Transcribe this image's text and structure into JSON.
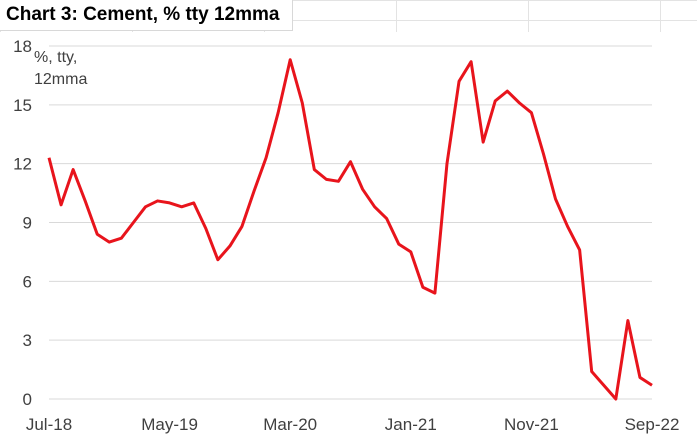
{
  "chart_data": {
    "type": "line",
    "title": "Chart 3: Cement, % tty 12mma",
    "ylabel": "%, tty, 12mma",
    "xlabel": "",
    "ylim": [
      0,
      18
    ],
    "yticks": [
      0,
      3,
      6,
      9,
      12,
      15,
      18
    ],
    "x_tick_labels": [
      "Jul-18",
      "May-19",
      "Mar-20",
      "Jan-21",
      "Nov-21",
      "Sep-22"
    ],
    "grid": true,
    "legend": "none",
    "x": [
      "Jul-18",
      "Aug-18",
      "Sep-18",
      "Oct-18",
      "Nov-18",
      "Dec-18",
      "Jan-19",
      "Feb-19",
      "Mar-19",
      "Apr-19",
      "May-19",
      "Jun-19",
      "Jul-19",
      "Aug-19",
      "Sep-19",
      "Oct-19",
      "Nov-19",
      "Dec-19",
      "Jan-20",
      "Feb-20",
      "Mar-20",
      "Apr-20",
      "May-20",
      "Jun-20",
      "Jul-20",
      "Aug-20",
      "Sep-20",
      "Oct-20",
      "Nov-20",
      "Dec-20",
      "Jan-21",
      "Feb-21",
      "Mar-21",
      "Apr-21",
      "May-21",
      "Jun-21",
      "Jul-21",
      "Aug-21",
      "Sep-21",
      "Oct-21",
      "Nov-21",
      "Dec-21",
      "Jan-22",
      "Feb-22",
      "Mar-22",
      "Apr-22",
      "May-22",
      "Jun-22",
      "Jul-22",
      "Aug-22",
      "Sep-22"
    ],
    "series": [
      {
        "name": "",
        "color": "#e8141c",
        "values": [
          12.3,
          9.9,
          11.7,
          10.1,
          8.4,
          8.0,
          8.2,
          9.0,
          9.8,
          10.1,
          10.0,
          9.8,
          10.0,
          8.7,
          7.1,
          7.8,
          8.8,
          10.6,
          12.3,
          14.6,
          17.3,
          15.1,
          11.7,
          11.2,
          11.1,
          12.1,
          10.7,
          9.8,
          9.2,
          7.9,
          7.5,
          5.7,
          5.4,
          12.0,
          16.2,
          17.2,
          13.1,
          15.2,
          15.7,
          15.1,
          14.6,
          12.5,
          10.2,
          8.8,
          7.6,
          1.4,
          0.7,
          0.0,
          4.0,
          1.1,
          0.7
        ]
      }
    ]
  }
}
